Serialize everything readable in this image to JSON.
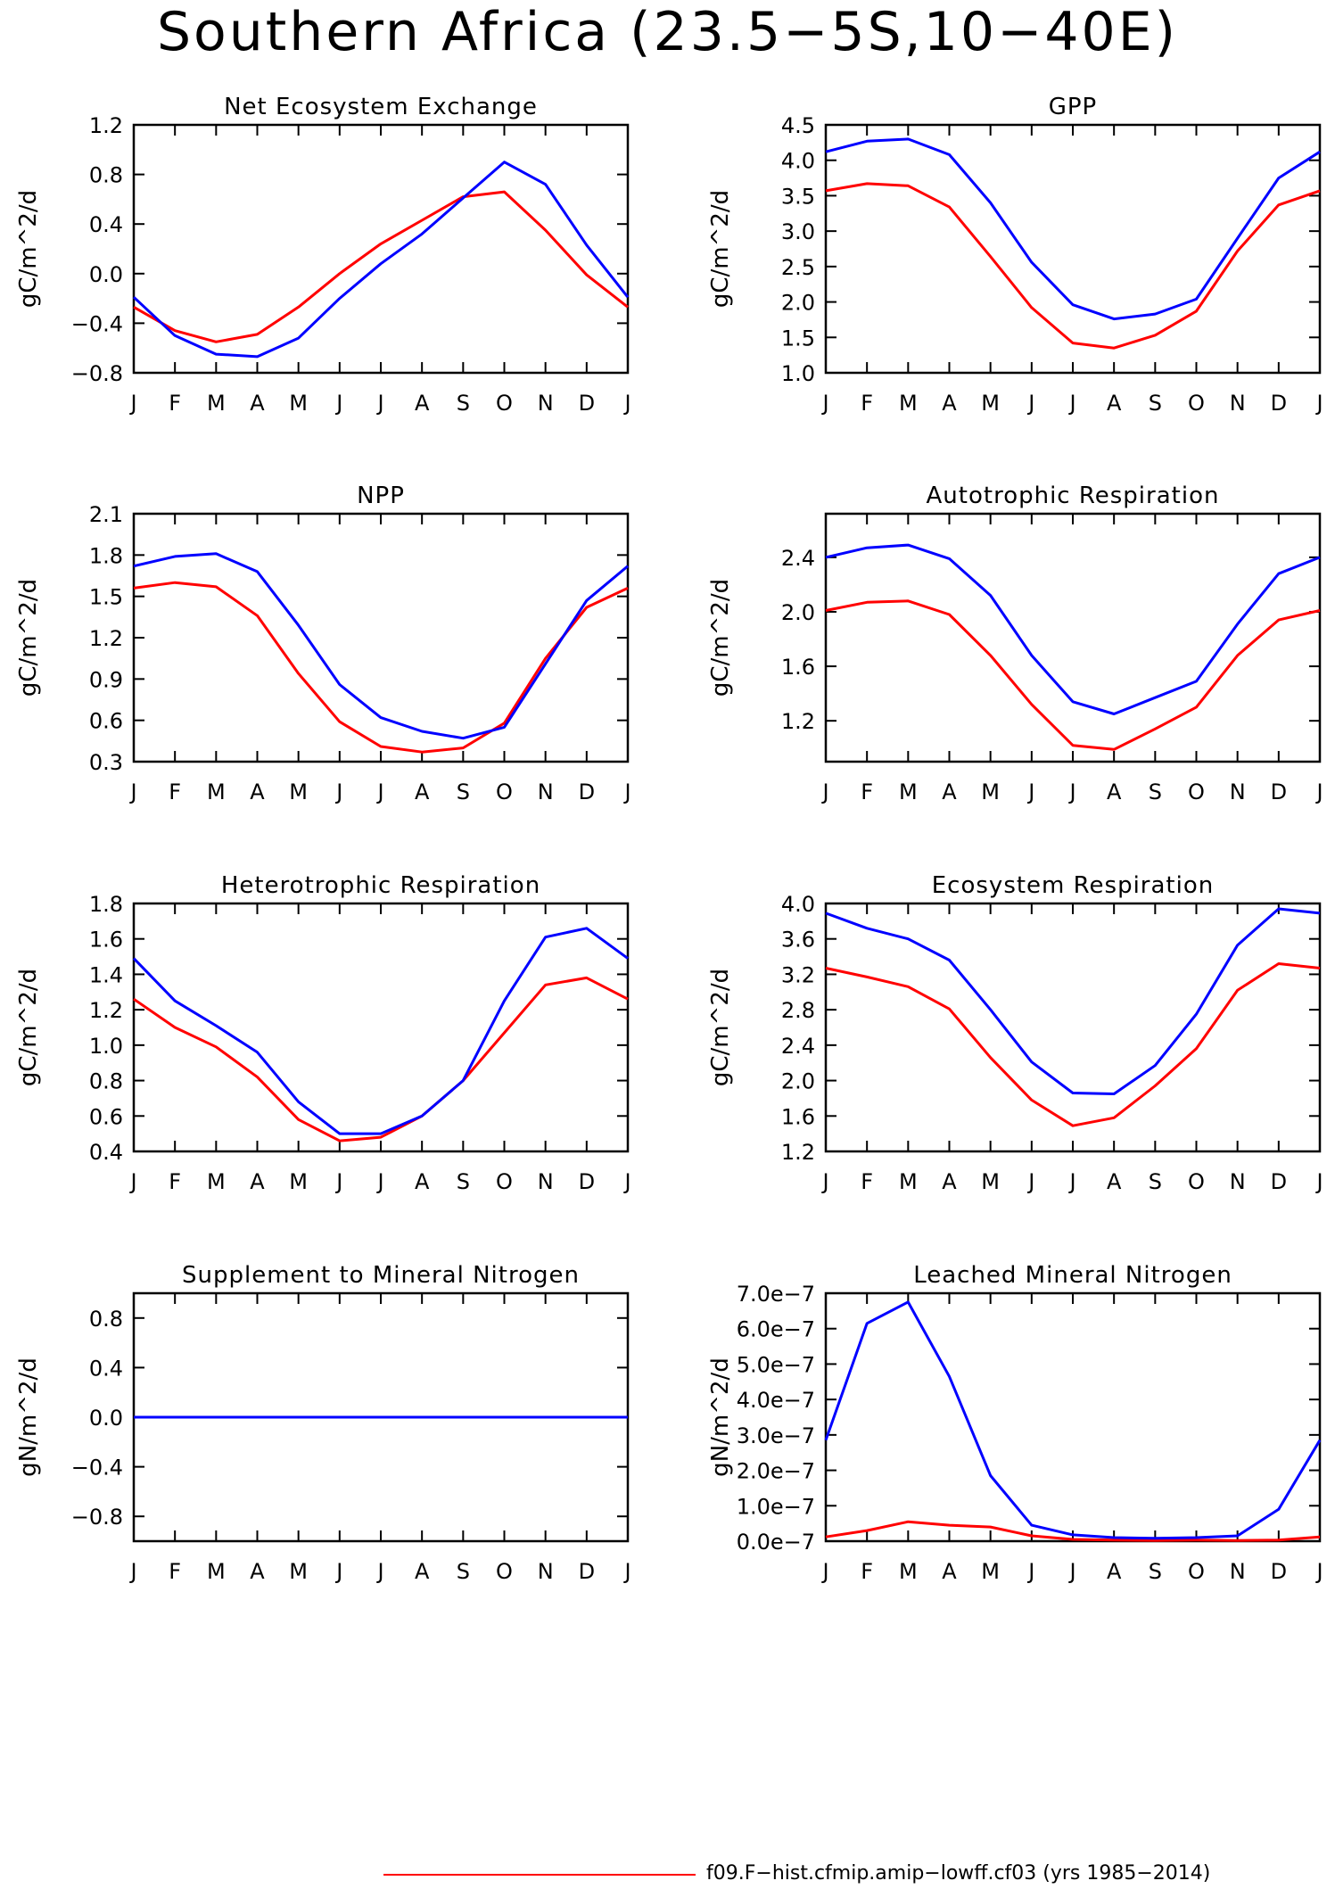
{
  "title": "Southern Africa (23.5−5S,10−40E)",
  "legend": {
    "label": "f09.F−hist.cfmip.amip−lowff.cf03 (yrs 1985−2014)",
    "color": "#ff0000"
  },
  "series_colors": {
    "red": "#ff0000",
    "blue": "#0000ff"
  },
  "chart_data": [
    {
      "type": "line",
      "title": "Net Ecosystem Exchange",
      "ylabel": "gC/m^2/d",
      "categories": [
        "J",
        "F",
        "M",
        "A",
        "M",
        "J",
        "J",
        "A",
        "S",
        "O",
        "N",
        "D",
        "J"
      ],
      "yticks": [
        "−0.8",
        "−0.4",
        "0.0",
        "0.4",
        "0.8",
        "1.2"
      ],
      "ytick_values": [
        -0.8,
        -0.4,
        0.0,
        0.4,
        0.8,
        1.2
      ],
      "ylim": [
        -0.8,
        1.2
      ],
      "series": [
        {
          "color": "#ff0000",
          "values": [
            -0.27,
            -0.46,
            -0.55,
            -0.49,
            -0.27,
            0.0,
            0.24,
            0.43,
            0.62,
            0.66,
            0.35,
            -0.01,
            -0.27
          ]
        },
        {
          "color": "#0000ff",
          "values": [
            -0.19,
            -0.5,
            -0.65,
            -0.67,
            -0.52,
            -0.2,
            0.08,
            0.32,
            0.61,
            0.9,
            0.72,
            0.23,
            -0.19
          ]
        }
      ]
    },
    {
      "type": "line",
      "title": "GPP",
      "ylabel": "gC/m^2/d",
      "categories": [
        "J",
        "F",
        "M",
        "A",
        "M",
        "J",
        "J",
        "A",
        "S",
        "O",
        "N",
        "D",
        "J"
      ],
      "yticks": [
        "1.0",
        "1.5",
        "2.0",
        "2.5",
        "3.0",
        "3.5",
        "4.0",
        "4.5"
      ],
      "ytick_values": [
        1.0,
        1.5,
        2.0,
        2.5,
        3.0,
        3.5,
        4.0,
        4.5
      ],
      "ylim": [
        1.0,
        4.5
      ],
      "series": [
        {
          "color": "#ff0000",
          "values": [
            3.57,
            3.67,
            3.64,
            3.34,
            2.64,
            1.92,
            1.42,
            1.35,
            1.53,
            1.87,
            2.72,
            3.37,
            3.57
          ]
        },
        {
          "color": "#0000ff",
          "values": [
            4.12,
            4.27,
            4.3,
            4.08,
            3.4,
            2.56,
            1.96,
            1.76,
            1.83,
            2.04,
            2.9,
            3.75,
            4.12
          ]
        }
      ]
    },
    {
      "type": "line",
      "title": "NPP",
      "ylabel": "gC/m^2/d",
      "categories": [
        "J",
        "F",
        "M",
        "A",
        "M",
        "J",
        "J",
        "A",
        "S",
        "O",
        "N",
        "D",
        "J"
      ],
      "yticks": [
        "0.3",
        "0.6",
        "0.9",
        "1.2",
        "1.5",
        "1.8",
        "2.1"
      ],
      "ytick_values": [
        0.3,
        0.6,
        0.9,
        1.2,
        1.5,
        1.8,
        2.1
      ],
      "ylim": [
        0.3,
        2.1
      ],
      "series": [
        {
          "color": "#ff0000",
          "values": [
            1.56,
            1.6,
            1.57,
            1.36,
            0.94,
            0.59,
            0.41,
            0.37,
            0.4,
            0.58,
            1.05,
            1.42,
            1.56
          ]
        },
        {
          "color": "#0000ff",
          "values": [
            1.72,
            1.79,
            1.81,
            1.68,
            1.29,
            0.86,
            0.62,
            0.52,
            0.47,
            0.55,
            1.01,
            1.47,
            1.72
          ]
        }
      ]
    },
    {
      "type": "line",
      "title": "Autotrophic Respiration",
      "ylabel": "gC/m^2/d",
      "categories": [
        "J",
        "F",
        "M",
        "A",
        "M",
        "J",
        "J",
        "A",
        "S",
        "O",
        "N",
        "D",
        "J"
      ],
      "yticks": [
        "1.2",
        "1.6",
        "2.0",
        "2.4"
      ],
      "ytick_values": [
        1.2,
        1.6,
        2.0,
        2.4
      ],
      "ylim": [
        0.9,
        2.72
      ],
      "series": [
        {
          "color": "#ff0000",
          "values": [
            2.01,
            2.07,
            2.08,
            1.98,
            1.68,
            1.32,
            1.02,
            0.99,
            1.14,
            1.3,
            1.68,
            1.94,
            2.01
          ]
        },
        {
          "color": "#0000ff",
          "values": [
            2.4,
            2.47,
            2.49,
            2.39,
            2.12,
            1.68,
            1.34,
            1.25,
            1.37,
            1.49,
            1.91,
            2.28,
            2.4
          ]
        }
      ]
    },
    {
      "type": "line",
      "title": "Heterotrophic Respiration",
      "ylabel": "gC/m^2/d",
      "categories": [
        "J",
        "F",
        "M",
        "A",
        "M",
        "J",
        "J",
        "A",
        "S",
        "O",
        "N",
        "D",
        "J"
      ],
      "yticks": [
        "0.4",
        "0.6",
        "0.8",
        "1.0",
        "1.2",
        "1.4",
        "1.6",
        "1.8"
      ],
      "ytick_values": [
        0.4,
        0.6,
        0.8,
        1.0,
        1.2,
        1.4,
        1.6,
        1.8
      ],
      "ylim": [
        0.4,
        1.8
      ],
      "series": [
        {
          "color": "#ff0000",
          "values": [
            1.26,
            1.1,
            0.99,
            0.82,
            0.58,
            0.46,
            0.48,
            0.6,
            0.8,
            1.07,
            1.34,
            1.38,
            1.26
          ]
        },
        {
          "color": "#0000ff",
          "values": [
            1.49,
            1.25,
            1.11,
            0.96,
            0.68,
            0.5,
            0.5,
            0.6,
            0.8,
            1.25,
            1.61,
            1.66,
            1.49
          ]
        }
      ]
    },
    {
      "type": "line",
      "title": "Ecosystem Respiration",
      "ylabel": "gC/m^2/d",
      "categories": [
        "J",
        "F",
        "M",
        "A",
        "M",
        "J",
        "J",
        "A",
        "S",
        "O",
        "N",
        "D",
        "J"
      ],
      "yticks": [
        "1.2",
        "1.6",
        "2.0",
        "2.4",
        "2.8",
        "3.2",
        "3.6",
        "4.0"
      ],
      "ytick_values": [
        1.2,
        1.6,
        2.0,
        2.4,
        2.8,
        3.2,
        3.6,
        4.0
      ],
      "ylim": [
        1.2,
        4.0
      ],
      "series": [
        {
          "color": "#ff0000",
          "values": [
            3.27,
            3.17,
            3.06,
            2.81,
            2.26,
            1.78,
            1.49,
            1.58,
            1.94,
            2.36,
            3.02,
            3.32,
            3.27
          ]
        },
        {
          "color": "#0000ff",
          "values": [
            3.89,
            3.72,
            3.6,
            3.36,
            2.8,
            2.21,
            1.86,
            1.85,
            2.17,
            2.75,
            3.53,
            3.94,
            3.89
          ]
        }
      ]
    },
    {
      "type": "line",
      "title": "Supplement to Mineral Nitrogen",
      "ylabel": "gN/m^2/d",
      "categories": [
        "J",
        "F",
        "M",
        "A",
        "M",
        "J",
        "J",
        "A",
        "S",
        "O",
        "N",
        "D",
        "J"
      ],
      "yticks": [
        "−0.8",
        "−0.4",
        "0.0",
        "0.4",
        "0.8"
      ],
      "ytick_values": [
        -0.8,
        -0.4,
        0.0,
        0.4,
        0.8
      ],
      "ylim": [
        -1.0,
        1.0
      ],
      "series": [
        {
          "color": "#ff0000",
          "values": [
            0,
            0,
            0,
            0,
            0,
            0,
            0,
            0,
            0,
            0,
            0,
            0,
            0
          ]
        },
        {
          "color": "#0000ff",
          "values": [
            0,
            0,
            0,
            0,
            0,
            0,
            0,
            0,
            0,
            0,
            0,
            0,
            0
          ]
        }
      ]
    },
    {
      "type": "line",
      "title": "Leached Mineral Nitrogen",
      "ylabel": "gN/m^2/d",
      "categories": [
        "J",
        "F",
        "M",
        "A",
        "M",
        "J",
        "J",
        "A",
        "S",
        "O",
        "N",
        "D",
        "J"
      ],
      "yticks": [
        "0.0e−7",
        "1.0e−7",
        "2.0e−7",
        "3.0e−7",
        "4.0e−7",
        "5.0e−7",
        "6.0e−7",
        "7.0e−7"
      ],
      "ytick_values": [
        0,
        1e-07,
        2e-07,
        3e-07,
        4e-07,
        5e-07,
        6e-07,
        7e-07
      ],
      "ylim": [
        0,
        7e-07
      ],
      "series": [
        {
          "color": "#ff0000",
          "values": [
            1.2e-08,
            3e-08,
            5.5e-08,
            4.5e-08,
            4e-08,
            1.5e-08,
            5e-09,
            3e-09,
            2e-09,
            3e-09,
            2e-09,
            3e-09,
            1.2e-08
          ]
        },
        {
          "color": "#0000ff",
          "values": [
            2.85e-07,
            6.15e-07,
            6.75e-07,
            4.65e-07,
            1.85e-07,
            4.5e-08,
            1.8e-08,
            1e-08,
            8e-09,
            1e-08,
            1.5e-08,
            9e-08,
            2.85e-07
          ]
        }
      ]
    }
  ]
}
